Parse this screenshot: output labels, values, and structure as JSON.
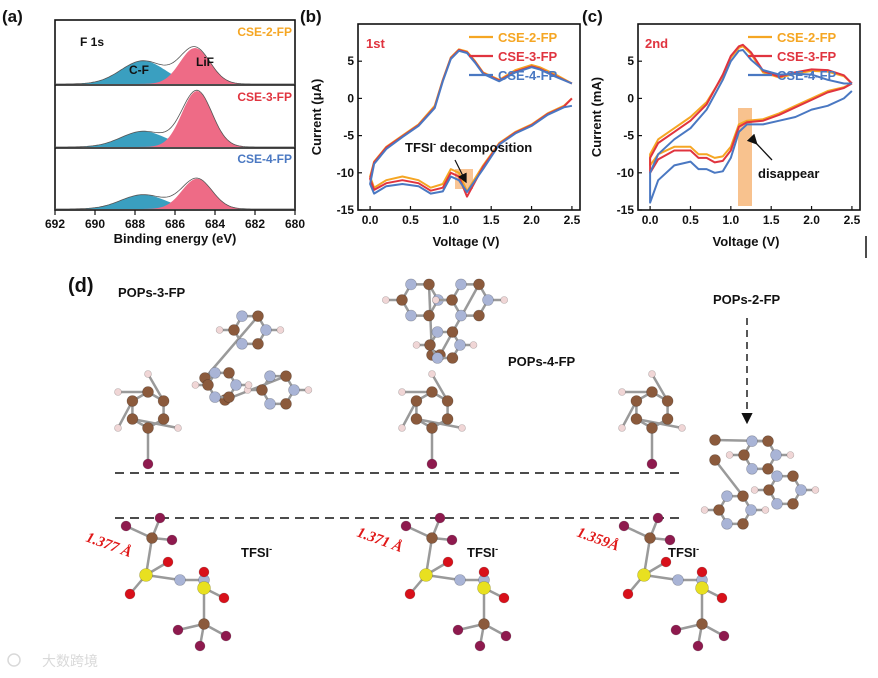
{
  "colors": {
    "orange": "#F5A623",
    "red": "#E0343F",
    "blue": "#4A78C2",
    "pink": "#EE6B86",
    "teal": "#3A9FC0",
    "highlight": "#F7B77A"
  },
  "panel_a": {
    "letter": "(a)",
    "title": "F 1s",
    "peak_cf": "C-F",
    "peak_lif": "LiF",
    "xlabel": "Binding energy (eV)",
    "xticks": [
      "692",
      "690",
      "688",
      "686",
      "684",
      "682",
      "680"
    ],
    "subplots": [
      {
        "label": "CSE-2-FP",
        "color": "#F5A623"
      },
      {
        "label": "CSE-3-FP",
        "color": "#E0343F"
      },
      {
        "label": "CSE-4-FP",
        "color": "#4A78C2"
      }
    ]
  },
  "panel_b": {
    "letter": "(b)",
    "cycle": "1st",
    "xlabel": "Voltage (V)",
    "ylabel": "Current (μA)",
    "xticks": [
      "0.0",
      "0.5",
      "1.0",
      "1.5",
      "2.0",
      "2.5"
    ],
    "yticks": [
      "5",
      "0",
      "-5",
      "-10",
      "-15"
    ],
    "annotation_main": "TFSI",
    "annotation_sup": "-",
    "annotation_rest": " decomposition",
    "legend": [
      "CSE-2-FP",
      "CSE-3-FP",
      "CSE-4-FP"
    ]
  },
  "panel_c": {
    "letter": "(c)",
    "cycle": "2nd",
    "xlabel": "Voltage (V)",
    "ylabel": "Current (mA)",
    "xticks": [
      "0.0",
      "0.5",
      "1.0",
      "1.5",
      "2.0",
      "2.5"
    ],
    "yticks": [
      "5",
      "0",
      "-5",
      "-10",
      "-15"
    ],
    "annotation": "disappear",
    "legend": [
      "CSE-2-FP",
      "CSE-3-FP",
      "CSE-4-FP"
    ]
  },
  "panel_d": {
    "letter": "(d)",
    "pops3": "POPs-3-FP",
    "pops4": "POPs-4-FP",
    "pops2": "POPs-2-FP",
    "tfsi_main": "TFSI",
    "tfsi_sup": "-",
    "bond1": "1.377 Å",
    "bond2": "1.371 Å",
    "bond3": "1.359Å"
  },
  "watermark": "大数跨境",
  "chart_data": [
    {
      "type": "area",
      "title": "F 1s",
      "xlabel": "Binding energy (eV)",
      "xlim": [
        692,
        680
      ],
      "series": [
        {
          "name": "CSE-2-FP",
          "components": [
            {
              "name": "C-F",
              "center": 687.6,
              "height": 0.4
            },
            {
              "name": "LiF",
              "center": 685.0,
              "height": 0.62
            }
          ]
        },
        {
          "name": "CSE-3-FP",
          "components": [
            {
              "name": "C-F",
              "center": 687.6,
              "height": 0.28
            },
            {
              "name": "LiF",
              "center": 684.9,
              "height": 1.0
            }
          ]
        },
        {
          "name": "CSE-4-FP",
          "components": [
            {
              "name": "C-F",
              "center": 687.6,
              "height": 0.26
            },
            {
              "name": "LiF",
              "center": 684.9,
              "height": 0.55
            }
          ]
        }
      ]
    },
    {
      "type": "line",
      "title": "1st",
      "xlabel": "Voltage (V)",
      "ylabel": "Current (μA)",
      "xlim": [
        -0.15,
        2.6
      ],
      "ylim": [
        -15,
        10
      ],
      "series": [
        {
          "name": "CSE-2-FP",
          "color": "#F5A623",
          "x": [
            2.5,
            2.3,
            2.1,
            2.0,
            1.8,
            1.6,
            1.4,
            1.3,
            1.2,
            1.1,
            1.0,
            0.9,
            0.8,
            0.6,
            0.4,
            0.2,
            0.05,
            0.0,
            0.05,
            0.2,
            0.4,
            0.6,
            0.75,
            0.9,
            1.0,
            1.1,
            1.2,
            1.4,
            1.6,
            1.8,
            2.0,
            2.2,
            2.4,
            2.5
          ],
          "y": [
            2,
            3.2,
            4.2,
            4.5,
            3.8,
            2.5,
            3.5,
            5,
            6.3,
            6.6,
            5.5,
            2.5,
            -1,
            -3.5,
            -5,
            -6.5,
            -8.5,
            -10.5,
            -12,
            -11,
            -10.5,
            -11,
            -12,
            -11.5,
            -9.5,
            -10,
            -12.5,
            -9,
            -6,
            -4.5,
            -3.5,
            -2,
            -1,
            0
          ]
        },
        {
          "name": "CSE-3-FP",
          "color": "#E0343F",
          "x": [
            2.5,
            2.3,
            2.1,
            2.0,
            1.8,
            1.6,
            1.4,
            1.3,
            1.2,
            1.1,
            1.0,
            0.9,
            0.8,
            0.6,
            0.4,
            0.2,
            0.05,
            0.0,
            0.05,
            0.2,
            0.4,
            0.6,
            0.75,
            0.9,
            1.0,
            1.1,
            1.2,
            1.4,
            1.6,
            1.8,
            2.0,
            2.2,
            2.4,
            2.5
          ],
          "y": [
            2,
            3.0,
            4.0,
            4.3,
            3.6,
            2.4,
            3.4,
            4.9,
            6.2,
            6.5,
            5.4,
            2.4,
            -1.2,
            -3.6,
            -5.1,
            -6.6,
            -8.6,
            -10.8,
            -12.3,
            -11.4,
            -11,
            -11.4,
            -12.4,
            -12,
            -10,
            -10.5,
            -13.2,
            -9.2,
            -6.1,
            -4.6,
            -3.6,
            -2.1,
            -1.1,
            0
          ]
        },
        {
          "name": "CSE-4-FP",
          "color": "#4A78C2",
          "x": [
            2.5,
            2.3,
            2.1,
            2.0,
            1.8,
            1.6,
            1.4,
            1.3,
            1.2,
            1.1,
            1.0,
            0.9,
            0.8,
            0.6,
            0.4,
            0.2,
            0.05,
            0.0,
            0.05,
            0.2,
            0.4,
            0.6,
            0.75,
            0.9,
            1.0,
            1.1,
            1.2,
            1.4,
            1.6,
            1.8,
            2.0,
            2.2,
            2.4,
            2.5
          ],
          "y": [
            2,
            2.9,
            3.9,
            4.2,
            3.5,
            2.3,
            3.3,
            4.8,
            6.1,
            6.4,
            5.3,
            2.3,
            -1.3,
            -3.7,
            -5.2,
            -6.8,
            -8.8,
            -11.5,
            -12.8,
            -11.8,
            -11.5,
            -11.8,
            -12.8,
            -12.5,
            -10.5,
            -11,
            -12.6,
            -9.5,
            -6.2,
            -4.7,
            -3.7,
            -2.2,
            -1.2,
            -1
          ]
        }
      ]
    },
    {
      "type": "line",
      "title": "2nd",
      "xlabel": "Voltage (V)",
      "ylabel": "Current (mA)",
      "xlim": [
        -0.15,
        2.6
      ],
      "ylim": [
        -15,
        10
      ],
      "series": [
        {
          "name": "CSE-2-FP",
          "color": "#F5A623",
          "x": [
            2.5,
            2.4,
            2.2,
            2.0,
            1.8,
            1.6,
            1.4,
            1.25,
            1.15,
            1.1,
            1.0,
            0.9,
            0.7,
            0.5,
            0.3,
            0.1,
            0.0,
            0.0,
            0.1,
            0.3,
            0.5,
            0.6,
            0.7,
            0.8,
            0.9,
            1.0,
            1.1,
            1.2,
            1.4,
            1.6,
            1.8,
            2.0,
            2.2,
            2.4,
            2.5
          ],
          "y": [
            2,
            3,
            3.6,
            3.7,
            3.3,
            2.8,
            3.5,
            6,
            7,
            6.8,
            5.5,
            3,
            -0.5,
            -2.5,
            -4,
            -5.5,
            -7.5,
            -9,
            -7.5,
            -6.5,
            -6.5,
            -7.5,
            -7.5,
            -8,
            -7.8,
            -6.5,
            -3.5,
            -3,
            -2.8,
            -2,
            -1,
            0,
            1,
            1.5,
            2
          ]
        },
        {
          "name": "CSE-3-FP",
          "color": "#E0343F",
          "x": [
            2.5,
            2.4,
            2.2,
            2.0,
            1.8,
            1.6,
            1.4,
            1.25,
            1.15,
            1.1,
            1.0,
            0.9,
            0.7,
            0.5,
            0.3,
            0.1,
            0.0,
            0.0,
            0.1,
            0.3,
            0.5,
            0.6,
            0.7,
            0.8,
            0.9,
            1.0,
            1.1,
            1.2,
            1.4,
            1.6,
            1.8,
            2.0,
            2.2,
            2.4,
            2.5
          ],
          "y": [
            2,
            3.1,
            3.8,
            3.9,
            3.5,
            2.9,
            3.7,
            6.2,
            7.2,
            7,
            5.7,
            3.2,
            -0.8,
            -3,
            -4.5,
            -6,
            -8,
            -10,
            -8.2,
            -7,
            -7,
            -8,
            -8,
            -8.6,
            -8.4,
            -7,
            -3.8,
            -3.2,
            -3,
            -2.2,
            -1.2,
            -0.2,
            0.8,
            1.4,
            2
          ]
        },
        {
          "name": "CSE-4-FP",
          "color": "#4A78C2",
          "x": [
            2.5,
            2.4,
            2.2,
            2.0,
            1.8,
            1.6,
            1.4,
            1.25,
            1.15,
            1.1,
            1.0,
            0.9,
            0.7,
            0.5,
            0.3,
            0.1,
            0.0,
            0.0,
            0.1,
            0.3,
            0.5,
            0.6,
            0.7,
            0.8,
            0.9,
            1.0,
            1.1,
            1.2,
            1.4,
            1.6,
            1.8,
            2.0,
            2.2,
            2.4,
            2.5
          ],
          "y": [
            2,
            2,
            2.5,
            3.2,
            3.3,
            3.2,
            3.8,
            5.2,
            6.5,
            6.4,
            5,
            2.5,
            -1.5,
            -4,
            -5.5,
            -7.5,
            -10,
            -14,
            -11,
            -9,
            -8.5,
            -9.5,
            -9.5,
            -10,
            -9.8,
            -8,
            -4.5,
            -3.5,
            -3.5,
            -3,
            -2.5,
            -1.5,
            -1,
            0,
            1
          ]
        }
      ]
    }
  ]
}
